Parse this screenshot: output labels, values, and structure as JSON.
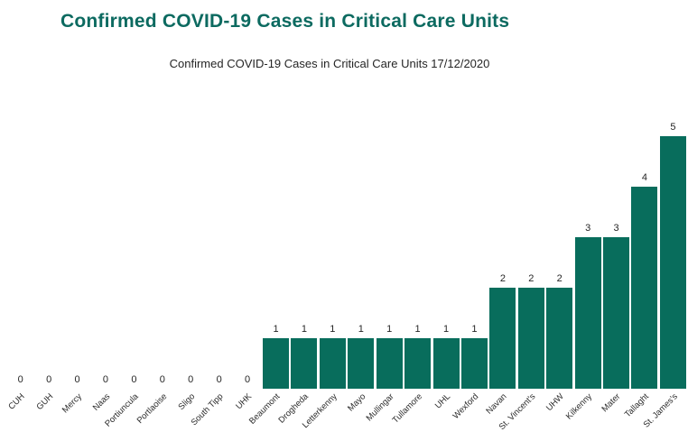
{
  "page": {
    "background": "#ffffff"
  },
  "chart_data": {
    "type": "bar",
    "title": "Confirmed COVID-19 Cases in Critical Care Units",
    "subtitle": "Confirmed COVID-19 Cases in Critical Care Units 17/12/2020",
    "categories": [
      "CUH",
      "GUH",
      "Mercy",
      "Naas",
      "Portiuncula",
      "Portlaoise",
      "Sligo",
      "South Tipp",
      "UHK",
      "Beaumont",
      "Drogheda",
      "Letterkenny",
      "Mayo",
      "Mullingar",
      "Tullamore",
      "UHL",
      "Wexford",
      "Navan",
      "St. Vincent's",
      "UHW",
      "Kilkenny",
      "Mater",
      "Tallaght",
      "St. James's"
    ],
    "values": [
      0,
      0,
      0,
      0,
      0,
      0,
      0,
      0,
      0,
      1,
      1,
      1,
      1,
      1,
      1,
      1,
      1,
      2,
      2,
      2,
      3,
      3,
      4,
      5
    ],
    "xlabel": "",
    "ylabel": "",
    "ylim": [
      0,
      5
    ],
    "data_labels": true,
    "gridlines": false,
    "legend": false,
    "bar_color": "#086D5C",
    "title_color": "#0C6A60",
    "data_label_color": "#252525",
    "axis_label_color": "#2b2b2b",
    "x_label_rotation_deg": -45
  }
}
